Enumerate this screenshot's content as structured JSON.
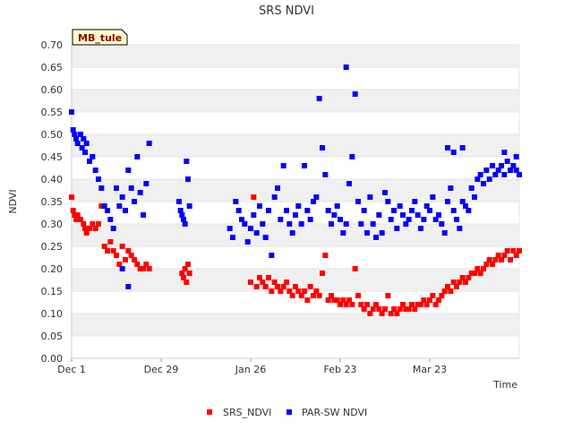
{
  "chart_data": {
    "type": "scatter",
    "title": "SRS NDVI",
    "site_label": "MB_tule",
    "xlabel": "Time",
    "ylabel": "NDVI",
    "xlim": [
      0,
      150
    ],
    "ylim": [
      0,
      0.7
    ],
    "yticks": [
      "0.00",
      "0.05",
      "0.10",
      "0.15",
      "0.20",
      "0.25",
      "0.30",
      "0.35",
      "0.40",
      "0.45",
      "0.50",
      "0.55",
      "0.60",
      "0.65",
      "0.70"
    ],
    "xticks": [
      {
        "day": 0,
        "label": "Dec 1"
      },
      {
        "day": 30,
        "label": "Dec 29"
      },
      {
        "day": 60,
        "label": "Jan 26"
      },
      {
        "day": 90,
        "label": "Feb 23"
      },
      {
        "day": 120,
        "label": "Mar 23"
      }
    ],
    "series": [
      {
        "name": "SRS_NDVI",
        "color": "#ff0000",
        "points": [
          [
            0,
            0.36
          ],
          [
            0.5,
            0.33
          ],
          [
            1,
            0.32
          ],
          [
            1.5,
            0.31
          ],
          [
            2,
            0.32
          ],
          [
            3,
            0.31
          ],
          [
            4,
            0.3
          ],
          [
            4.5,
            0.29
          ],
          [
            5,
            0.28
          ],
          [
            6,
            0.29
          ],
          [
            7,
            0.3
          ],
          [
            8,
            0.29
          ],
          [
            9,
            0.3
          ],
          [
            10,
            0.34
          ],
          [
            11,
            0.25
          ],
          [
            12,
            0.24
          ],
          [
            13,
            0.26
          ],
          [
            14,
            0.24
          ],
          [
            15,
            0.23
          ],
          [
            16,
            0.21
          ],
          [
            17,
            0.25
          ],
          [
            18,
            0.22
          ],
          [
            19,
            0.24
          ],
          [
            20,
            0.23
          ],
          [
            21,
            0.22
          ],
          [
            22,
            0.21
          ],
          [
            23,
            0.2
          ],
          [
            24,
            0.2
          ],
          [
            25,
            0.21
          ],
          [
            26,
            0.2
          ],
          [
            37,
            0.19
          ],
          [
            37.5,
            0.18
          ],
          [
            38,
            0.2
          ],
          [
            38.5,
            0.17
          ],
          [
            39,
            0.21
          ],
          [
            39.5,
            0.19
          ],
          [
            60,
            0.17
          ],
          [
            61,
            0.36
          ],
          [
            62,
            0.16
          ],
          [
            63,
            0.18
          ],
          [
            64,
            0.17
          ],
          [
            65,
            0.16
          ],
          [
            66,
            0.18
          ],
          [
            67,
            0.15
          ],
          [
            68,
            0.17
          ],
          [
            69,
            0.16
          ],
          [
            70,
            0.15
          ],
          [
            71,
            0.16
          ],
          [
            72,
            0.17
          ],
          [
            73,
            0.15
          ],
          [
            74,
            0.14
          ],
          [
            75,
            0.16
          ],
          [
            76,
            0.15
          ],
          [
            77,
            0.14
          ],
          [
            78,
            0.15
          ],
          [
            79,
            0.13
          ],
          [
            80,
            0.16
          ],
          [
            81,
            0.14
          ],
          [
            82,
            0.15
          ],
          [
            83,
            0.14
          ],
          [
            84,
            0.19
          ],
          [
            85,
            0.23
          ],
          [
            86,
            0.13
          ],
          [
            87,
            0.14
          ],
          [
            88,
            0.13
          ],
          [
            89,
            0.13
          ],
          [
            90,
            0.12
          ],
          [
            91,
            0.13
          ],
          [
            92,
            0.12
          ],
          [
            93,
            0.13
          ],
          [
            94,
            0.12
          ],
          [
            95,
            0.2
          ],
          [
            96,
            0.14
          ],
          [
            97,
            0.12
          ],
          [
            98,
            0.11
          ],
          [
            99,
            0.12
          ],
          [
            100,
            0.1
          ],
          [
            101,
            0.11
          ],
          [
            102,
            0.12
          ],
          [
            103,
            0.11
          ],
          [
            104,
            0.1
          ],
          [
            105,
            0.11
          ],
          [
            106,
            0.14
          ],
          [
            107,
            0.1
          ],
          [
            108,
            0.11
          ],
          [
            109,
            0.1
          ],
          [
            110,
            0.11
          ],
          [
            111,
            0.12
          ],
          [
            112,
            0.11
          ],
          [
            113,
            0.11
          ],
          [
            114,
            0.12
          ],
          [
            115,
            0.11
          ],
          [
            116,
            0.12
          ],
          [
            117,
            0.12
          ],
          [
            118,
            0.13
          ],
          [
            119,
            0.12
          ],
          [
            120,
            0.13
          ],
          [
            121,
            0.14
          ],
          [
            122,
            0.12
          ],
          [
            123,
            0.13
          ],
          [
            124,
            0.14
          ],
          [
            125,
            0.15
          ],
          [
            126,
            0.16
          ],
          [
            127,
            0.15
          ],
          [
            128,
            0.17
          ],
          [
            129,
            0.16
          ],
          [
            130,
            0.17
          ],
          [
            131,
            0.18
          ],
          [
            132,
            0.17
          ],
          [
            133,
            0.18
          ],
          [
            134,
            0.19
          ],
          [
            135,
            0.19
          ],
          [
            136,
            0.2
          ],
          [
            137,
            0.19
          ],
          [
            138,
            0.2
          ],
          [
            139,
            0.21
          ],
          [
            140,
            0.22
          ],
          [
            141,
            0.21
          ],
          [
            142,
            0.22
          ],
          [
            143,
            0.23
          ],
          [
            144,
            0.22
          ],
          [
            145,
            0.23
          ],
          [
            146,
            0.24
          ],
          [
            147,
            0.22
          ],
          [
            148,
            0.24
          ],
          [
            149,
            0.23
          ],
          [
            150,
            0.24
          ]
        ]
      },
      {
        "name": "PAR-SW NDVI",
        "color": "#0000ff",
        "points": [
          [
            0,
            0.55
          ],
          [
            0.5,
            0.51
          ],
          [
            1,
            0.5
          ],
          [
            1.5,
            0.49
          ],
          [
            2,
            0.48
          ],
          [
            3,
            0.5
          ],
          [
            3.5,
            0.47
          ],
          [
            4,
            0.49
          ],
          [
            4.5,
            0.46
          ],
          [
            5,
            0.48
          ],
          [
            6,
            0.44
          ],
          [
            7,
            0.45
          ],
          [
            8,
            0.42
          ],
          [
            9,
            0.4
          ],
          [
            10,
            0.38
          ],
          [
            11,
            0.34
          ],
          [
            12,
            0.33
          ],
          [
            13,
            0.31
          ],
          [
            14,
            0.29
          ],
          [
            15,
            0.38
          ],
          [
            16,
            0.34
          ],
          [
            17,
            0.36
          ],
          [
            18,
            0.33
          ],
          [
            19,
            0.42
          ],
          [
            20,
            0.38
          ],
          [
            21,
            0.35
          ],
          [
            22,
            0.45
          ],
          [
            23,
            0.37
          ],
          [
            24,
            0.32
          ],
          [
            25,
            0.39
          ],
          [
            26,
            0.48
          ],
          [
            17,
            0.2
          ],
          [
            19,
            0.16
          ],
          [
            36,
            0.35
          ],
          [
            36.5,
            0.33
          ],
          [
            37,
            0.32
          ],
          [
            37.5,
            0.31
          ],
          [
            38,
            0.3
          ],
          [
            38.5,
            0.44
          ],
          [
            39,
            0.4
          ],
          [
            39.5,
            0.34
          ],
          [
            53,
            0.29
          ],
          [
            54,
            0.27
          ],
          [
            55,
            0.35
          ],
          [
            56,
            0.33
          ],
          [
            57,
            0.31
          ],
          [
            58,
            0.3
          ],
          [
            59,
            0.26
          ],
          [
            60,
            0.29
          ],
          [
            61,
            0.32
          ],
          [
            62,
            0.28
          ],
          [
            63,
            0.34
          ],
          [
            64,
            0.3
          ],
          [
            65,
            0.27
          ],
          [
            66,
            0.33
          ],
          [
            67,
            0.23
          ],
          [
            68,
            0.36
          ],
          [
            69,
            0.38
          ],
          [
            70,
            0.31
          ],
          [
            71,
            0.43
          ],
          [
            72,
            0.33
          ],
          [
            73,
            0.3
          ],
          [
            74,
            0.28
          ],
          [
            75,
            0.32
          ],
          [
            76,
            0.34
          ],
          [
            77,
            0.3
          ],
          [
            78,
            0.43
          ],
          [
            79,
            0.33
          ],
          [
            80,
            0.31
          ],
          [
            81,
            0.35
          ],
          [
            82,
            0.36
          ],
          [
            83,
            0.58
          ],
          [
            84,
            0.47
          ],
          [
            85,
            0.41
          ],
          [
            86,
            0.33
          ],
          [
            87,
            0.3
          ],
          [
            88,
            0.32
          ],
          [
            89,
            0.34
          ],
          [
            90,
            0.31
          ],
          [
            91,
            0.28
          ],
          [
            92,
            0.3
          ],
          [
            93,
            0.39
          ],
          [
            94,
            0.45
          ],
          [
            95,
            0.59
          ],
          [
            96,
            0.35
          ],
          [
            97,
            0.3
          ],
          [
            98,
            0.33
          ],
          [
            99,
            0.28
          ],
          [
            100,
            0.36
          ],
          [
            101,
            0.3
          ],
          [
            102,
            0.27
          ],
          [
            103,
            0.32
          ],
          [
            104,
            0.28
          ],
          [
            105,
            0.37
          ],
          [
            106,
            0.35
          ],
          [
            107,
            0.31
          ],
          [
            108,
            0.33
          ],
          [
            109,
            0.29
          ],
          [
            110,
            0.34
          ],
          [
            111,
            0.32
          ],
          [
            112,
            0.3
          ],
          [
            113,
            0.31
          ],
          [
            114,
            0.33
          ],
          [
            115,
            0.35
          ],
          [
            116,
            0.32
          ],
          [
            117,
            0.29
          ],
          [
            118,
            0.31
          ],
          [
            119,
            0.34
          ],
          [
            120,
            0.33
          ],
          [
            121,
            0.36
          ],
          [
            122,
            0.31
          ],
          [
            123,
            0.32
          ],
          [
            124,
            0.3
          ],
          [
            125,
            0.28
          ],
          [
            126,
            0.35
          ],
          [
            127,
            0.38
          ],
          [
            128,
            0.33
          ],
          [
            129,
            0.31
          ],
          [
            130,
            0.29
          ],
          [
            131,
            0.35
          ],
          [
            132,
            0.34
          ],
          [
            133,
            0.33
          ],
          [
            134,
            0.38
          ],
          [
            135,
            0.36
          ],
          [
            136,
            0.4
          ],
          [
            137,
            0.41
          ],
          [
            138,
            0.39
          ],
          [
            139,
            0.42
          ],
          [
            140,
            0.4
          ],
          [
            141,
            0.43
          ],
          [
            142,
            0.41
          ],
          [
            143,
            0.42
          ],
          [
            144,
            0.43
          ],
          [
            145,
            0.41
          ],
          [
            146,
            0.44
          ],
          [
            147,
            0.42
          ],
          [
            148,
            0.43
          ],
          [
            149,
            0.42
          ],
          [
            150,
            0.41
          ],
          [
            126,
            0.47
          ],
          [
            128,
            0.46
          ],
          [
            131,
            0.47
          ],
          [
            145,
            0.46
          ],
          [
            149,
            0.45
          ],
          [
            92,
            0.65
          ]
        ]
      }
    ]
  }
}
